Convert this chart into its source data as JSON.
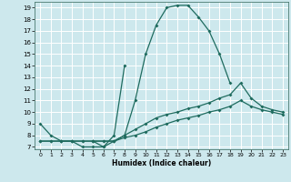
{
  "xlabel": "Humidex (Indice chaleur)",
  "bg_color": "#cde8ed",
  "grid_color": "#ffffff",
  "line_color": "#1e6b5e",
  "curves": [
    {
      "x": [
        0,
        1,
        2,
        3,
        4,
        5,
        6,
        7,
        8,
        9,
        10,
        11,
        12,
        13,
        14,
        15,
        16,
        17,
        18
      ],
      "y": [
        9,
        8,
        7.5,
        7.5,
        7,
        7,
        7,
        7.5,
        8,
        11,
        15,
        17.5,
        19,
        19.2,
        19.2,
        18.2,
        17,
        15,
        12.5
      ]
    },
    {
      "x": [
        5,
        6,
        7,
        8
      ],
      "y": [
        7.5,
        7,
        8,
        14
      ]
    },
    {
      "x": [
        0,
        1,
        2,
        3,
        4,
        5,
        6,
        7,
        8,
        9,
        10,
        11,
        12,
        13,
        14,
        15,
        16,
        17,
        18,
        19,
        20,
        21,
        22,
        23
      ],
      "y": [
        7.5,
        7.5,
        7.5,
        7.5,
        7.5,
        7.5,
        7.5,
        7.5,
        8,
        8.5,
        9,
        9.5,
        9.8,
        10,
        10.3,
        10.5,
        10.8,
        11.2,
        11.5,
        12.5,
        11.2,
        10.5,
        10.2,
        10
      ]
    },
    {
      "x": [
        0,
        1,
        2,
        3,
        4,
        5,
        6,
        7,
        8,
        9,
        10,
        11,
        12,
        13,
        14,
        15,
        16,
        17,
        18,
        19,
        20,
        21,
        22,
        23
      ],
      "y": [
        7.5,
        7.5,
        7.5,
        7.5,
        7.5,
        7.5,
        7.5,
        7.5,
        7.8,
        8,
        8.3,
        8.7,
        9,
        9.3,
        9.5,
        9.7,
        10,
        10.2,
        10.5,
        11,
        10.5,
        10.2,
        10,
        9.8
      ]
    }
  ],
  "xlim_min": -0.5,
  "xlim_max": 23.5,
  "ylim_min": 6.8,
  "ylim_max": 19.5,
  "yticks": [
    7,
    8,
    9,
    10,
    11,
    12,
    13,
    14,
    15,
    16,
    17,
    18,
    19
  ],
  "xticks": [
    0,
    1,
    2,
    3,
    4,
    5,
    6,
    7,
    8,
    9,
    10,
    11,
    12,
    13,
    14,
    15,
    16,
    17,
    18,
    19,
    20,
    21,
    22,
    23
  ]
}
